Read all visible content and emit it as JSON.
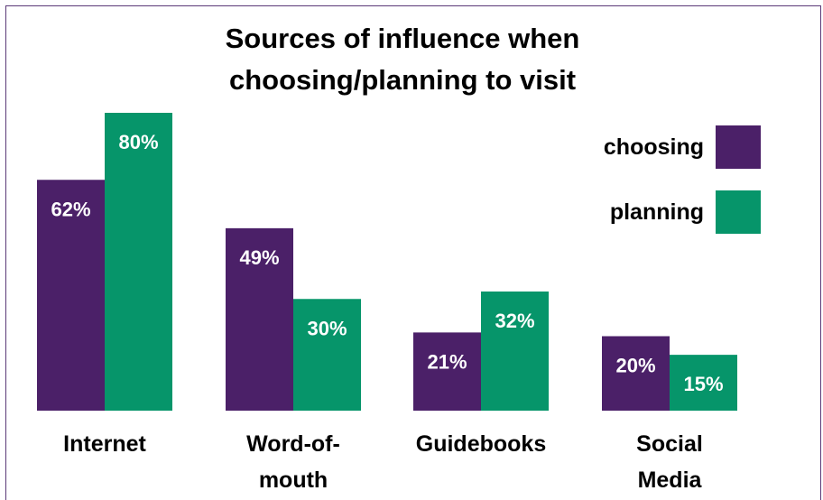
{
  "chart_data": {
    "type": "bar",
    "title_line1": "Sources of influence when",
    "title_line2": "choosing/planning to visit",
    "categories": [
      "Internet",
      "Word-of-mouth",
      "Guidebooks",
      "Social Media"
    ],
    "category_lines": [
      [
        "Internet"
      ],
      [
        "Word-of-",
        "mouth"
      ],
      [
        "Guidebooks"
      ],
      [
        "Social",
        "Media"
      ]
    ],
    "series": [
      {
        "name": "choosing",
        "values": [
          62,
          49,
          21,
          20
        ],
        "labels": [
          "62%",
          "49%",
          "21%",
          "20%"
        ],
        "color": "#4b2068"
      },
      {
        "name": "planning",
        "values": [
          80,
          30,
          32,
          15
        ],
        "labels": [
          "80%",
          "30%",
          "32%",
          "15%"
        ],
        "color": "#06956a"
      }
    ],
    "ylim": [
      0,
      80
    ],
    "legend_position": "right",
    "grid": false
  }
}
